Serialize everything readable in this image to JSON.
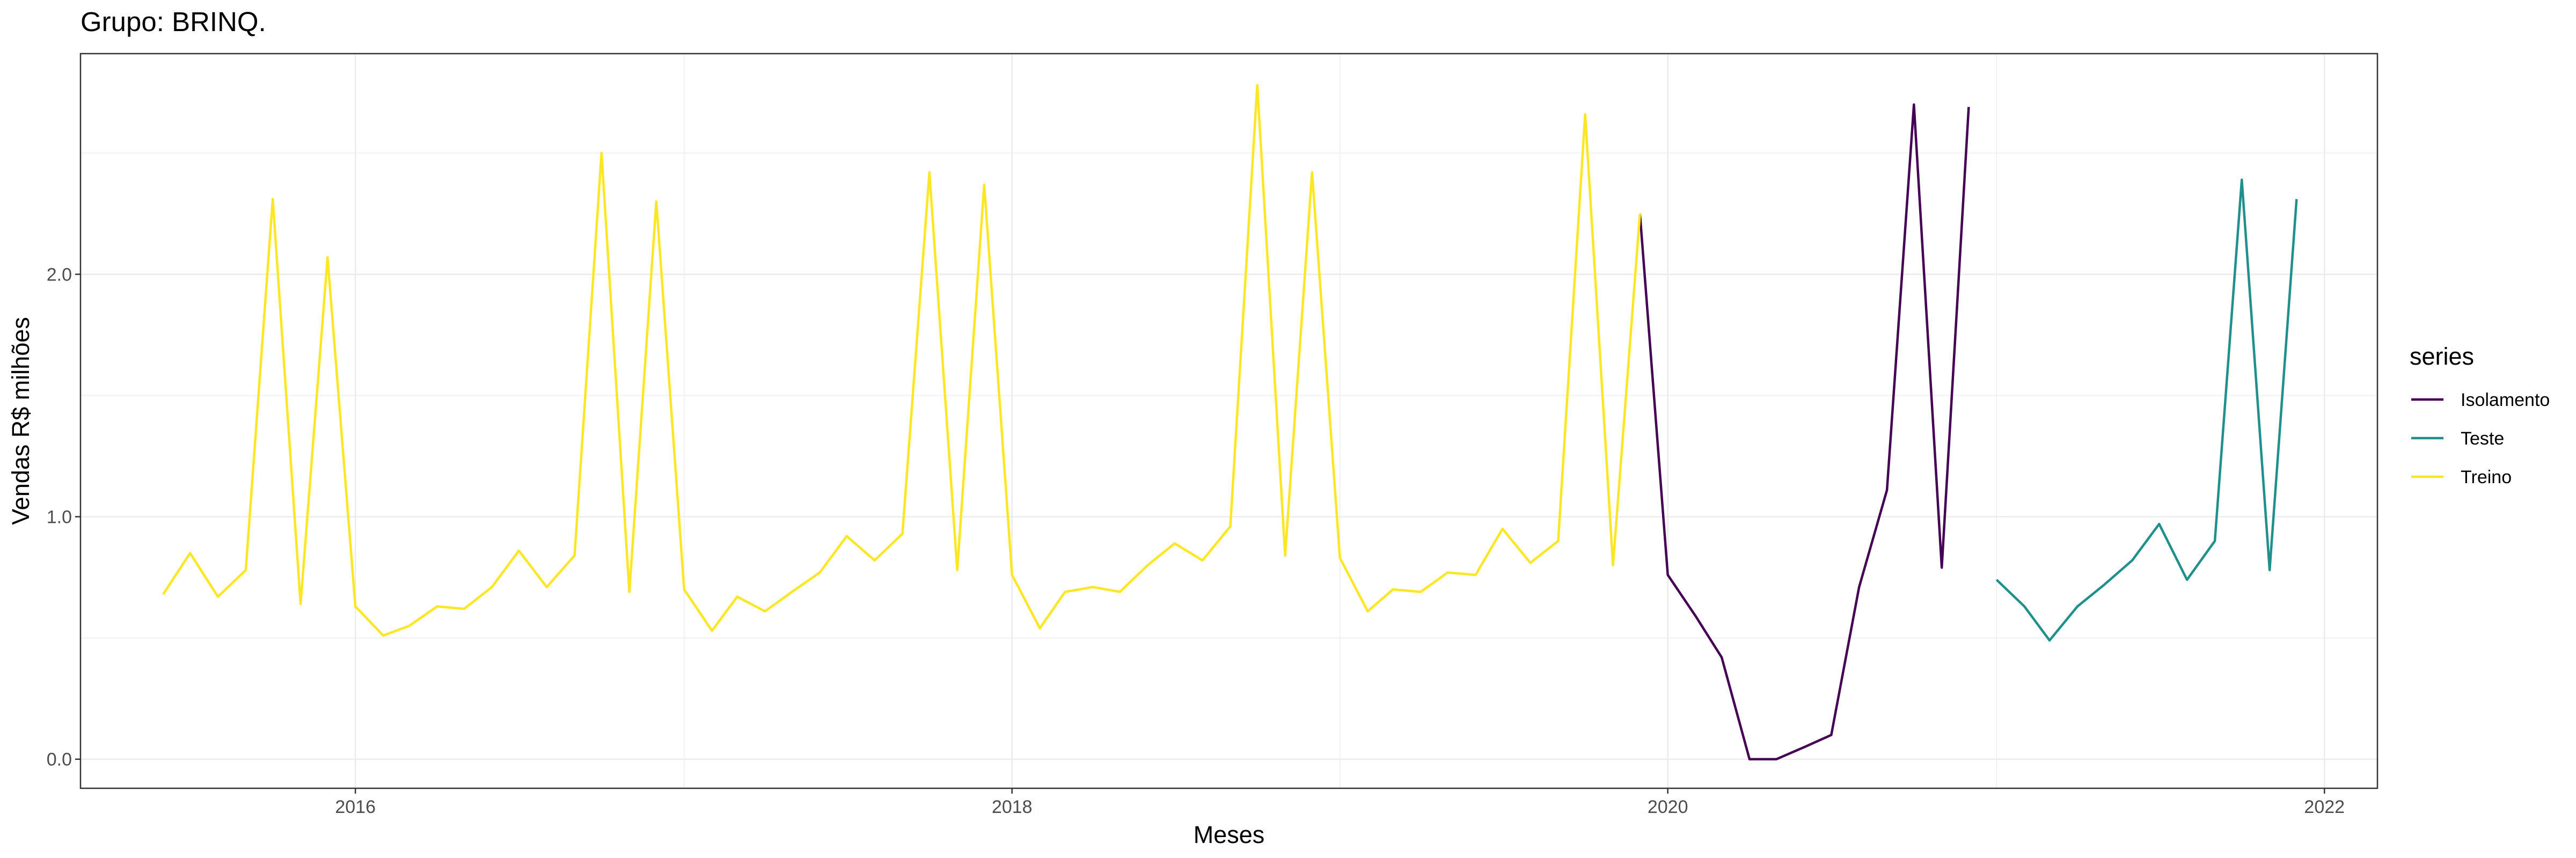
{
  "chart_data": {
    "type": "line",
    "title": "Grupo: BRINQ.",
    "xlabel": "Meses",
    "ylabel": "Vendas R$ milhões",
    "x_ticks": [
      "2016",
      "2018",
      "2020",
      "2022"
    ],
    "y_ticks": [
      "0.0",
      "1.0",
      "2.0"
    ],
    "xlim": [
      "2015-03-01",
      "2022-03-01"
    ],
    "ylim": [
      -0.12,
      2.91
    ],
    "grid": true,
    "legend": {
      "title": "series",
      "position": "right"
    },
    "series": [
      {
        "name": "Isolamento",
        "color": "#440154",
        "points": [
          [
            "2019-12",
            2.25
          ],
          [
            "2020-01",
            0.76
          ],
          [
            "2020-02",
            0.59
          ],
          [
            "2020-03",
            0.42
          ],
          [
            "2020-04",
            0.0
          ],
          [
            "2020-05",
            0.0
          ],
          [
            "2020-06",
            0.05
          ],
          [
            "2020-07",
            0.1
          ],
          [
            "2020-08",
            0.71
          ],
          [
            "2020-09",
            1.11
          ],
          [
            "2020-10",
            2.7
          ],
          [
            "2020-11",
            0.79
          ],
          [
            "2020-12",
            2.69
          ]
        ]
      },
      {
        "name": "Teste",
        "color": "#21908C",
        "points": [
          [
            "2021-01",
            0.74
          ],
          [
            "2021-02",
            0.63
          ],
          [
            "2021-03",
            0.49
          ],
          [
            "2021-04",
            0.63
          ],
          [
            "2021-05",
            0.72
          ],
          [
            "2021-06",
            0.82
          ],
          [
            "2021-07",
            0.97
          ],
          [
            "2021-08",
            0.74
          ],
          [
            "2021-09",
            0.9
          ],
          [
            "2021-10",
            2.39
          ],
          [
            "2021-11",
            0.78
          ],
          [
            "2021-12",
            2.31
          ]
        ]
      },
      {
        "name": "Treino",
        "color": "#FDE725",
        "points": [
          [
            "2015-06",
            0.68
          ],
          [
            "2015-07",
            0.85
          ],
          [
            "2015-08",
            0.67
          ],
          [
            "2015-09",
            0.78
          ],
          [
            "2015-10",
            2.31
          ],
          [
            "2015-11",
            0.64
          ],
          [
            "2015-12",
            2.07
          ],
          [
            "2016-01",
            0.63
          ],
          [
            "2016-02",
            0.51
          ],
          [
            "2016-03",
            0.55
          ],
          [
            "2016-04",
            0.63
          ],
          [
            "2016-05",
            0.62
          ],
          [
            "2016-06",
            0.71
          ],
          [
            "2016-07",
            0.86
          ],
          [
            "2016-08",
            0.71
          ],
          [
            "2016-09",
            0.84
          ],
          [
            "2016-10",
            2.5
          ],
          [
            "2016-11",
            0.69
          ],
          [
            "2016-12",
            2.3
          ],
          [
            "2017-01",
            0.7
          ],
          [
            "2017-02",
            0.53
          ],
          [
            "2017-03",
            0.67
          ],
          [
            "2017-04",
            0.61
          ],
          [
            "2017-05",
            0.69
          ],
          [
            "2017-06",
            0.77
          ],
          [
            "2017-07",
            0.92
          ],
          [
            "2017-08",
            0.82
          ],
          [
            "2017-09",
            0.93
          ],
          [
            "2017-10",
            2.42
          ],
          [
            "2017-11",
            0.78
          ],
          [
            "2017-12",
            2.37
          ],
          [
            "2018-01",
            0.76
          ],
          [
            "2018-02",
            0.54
          ],
          [
            "2018-03",
            0.69
          ],
          [
            "2018-04",
            0.71
          ],
          [
            "2018-05",
            0.69
          ],
          [
            "2018-06",
            0.8
          ],
          [
            "2018-07",
            0.89
          ],
          [
            "2018-08",
            0.82
          ],
          [
            "2018-09",
            0.96
          ],
          [
            "2018-10",
            2.78
          ],
          [
            "2018-11",
            0.84
          ],
          [
            "2018-12",
            2.42
          ],
          [
            "2019-01",
            0.83
          ],
          [
            "2019-02",
            0.61
          ],
          [
            "2019-03",
            0.7
          ],
          [
            "2019-04",
            0.69
          ],
          [
            "2019-05",
            0.77
          ],
          [
            "2019-06",
            0.76
          ],
          [
            "2019-07",
            0.95
          ],
          [
            "2019-08",
            0.81
          ],
          [
            "2019-09",
            0.9
          ],
          [
            "2019-10",
            2.66
          ],
          [
            "2019-11",
            0.8
          ],
          [
            "2019-12",
            2.25
          ]
        ]
      }
    ]
  }
}
